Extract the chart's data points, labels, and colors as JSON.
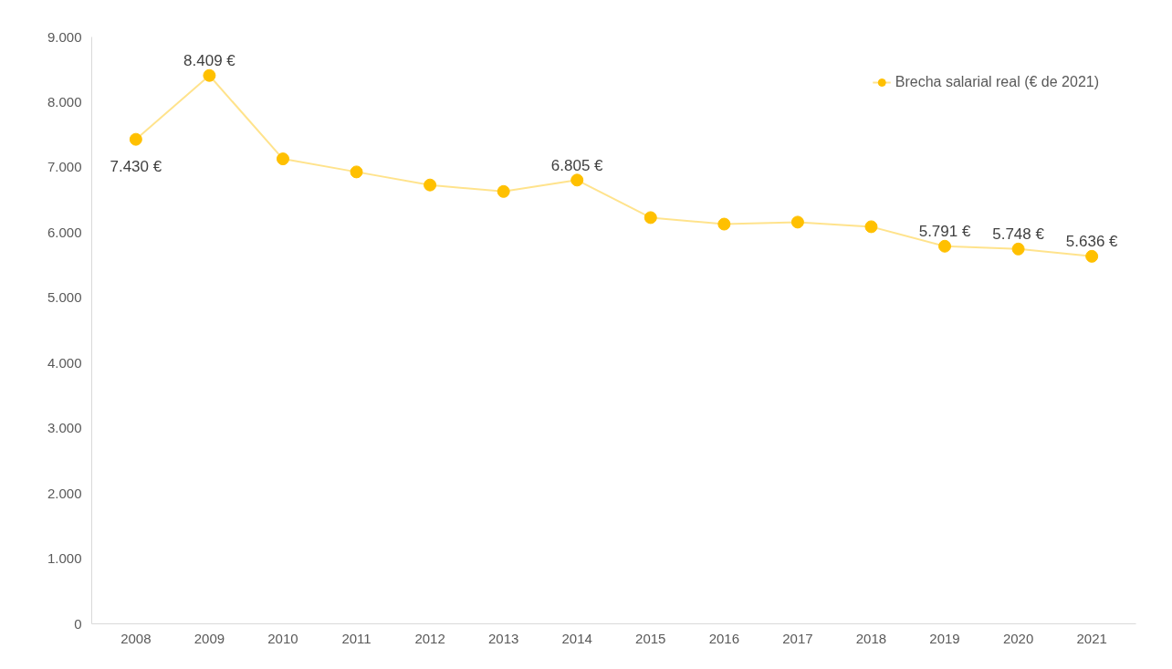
{
  "chart_data": {
    "type": "line",
    "categories": [
      "2008",
      "2009",
      "2010",
      "2011",
      "2012",
      "2013",
      "2014",
      "2015",
      "2016",
      "2017",
      "2018",
      "2019",
      "2020",
      "2021"
    ],
    "series": [
      {
        "name": "Brecha salarial real (€ de 2021)",
        "color": "#ffc000",
        "values": [
          7430,
          8409,
          7130,
          6930,
          6730,
          6630,
          6805,
          6230,
          6130,
          6160,
          6090,
          5791,
          5748,
          5636
        ],
        "value_labels": [
          "7.430 €",
          "8.409 €",
          null,
          null,
          null,
          null,
          "6.805 €",
          null,
          null,
          null,
          null,
          "5.791 €",
          "5.748 €",
          "5.636 €"
        ]
      }
    ],
    "ylim": [
      0,
      9000
    ],
    "yticks": [
      {
        "value": 0,
        "label": "0"
      },
      {
        "value": 1000,
        "label": "1.000"
      },
      {
        "value": 2000,
        "label": "2.000"
      },
      {
        "value": 3000,
        "label": "3.000"
      },
      {
        "value": 4000,
        "label": "4.000"
      },
      {
        "value": 5000,
        "label": "5.000"
      },
      {
        "value": 6000,
        "label": "6.000"
      },
      {
        "value": 7000,
        "label": "7.000"
      },
      {
        "value": 8000,
        "label": "8.000"
      },
      {
        "value": 9000,
        "label": "9.000"
      }
    ],
    "legend": "top right",
    "marker": "circle",
    "line_style": "solid"
  }
}
